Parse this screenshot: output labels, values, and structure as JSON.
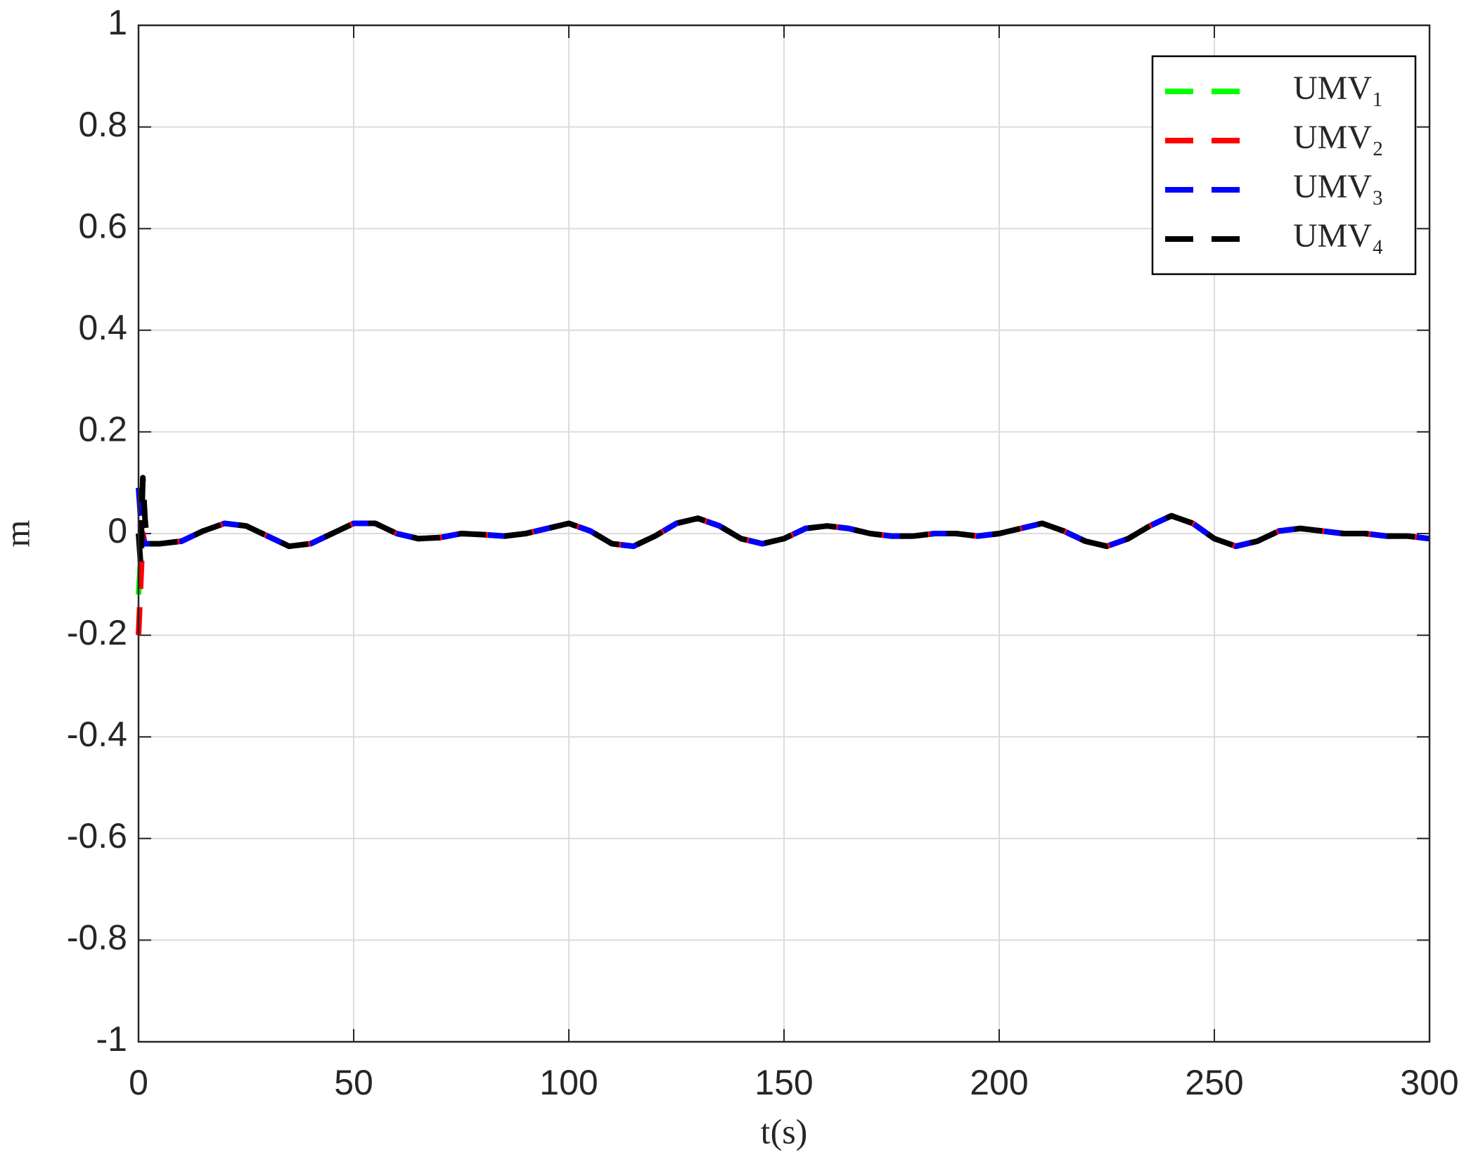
{
  "chart_data": {
    "type": "line",
    "xlabel": "t(s)",
    "ylabel": "m",
    "xlim": [
      0,
      300
    ],
    "ylim": [
      -1,
      1
    ],
    "xticks": [
      0,
      50,
      100,
      150,
      200,
      250,
      300
    ],
    "yticks": [
      -1,
      -0.8,
      -0.6,
      -0.4,
      -0.2,
      0,
      0.2,
      0.4,
      0.6,
      0.8,
      1
    ],
    "grid": true,
    "legend": "upper right",
    "x": [
      0,
      0.5,
      1,
      1.5,
      2,
      3,
      5,
      10,
      15,
      20,
      25,
      30,
      35,
      40,
      45,
      50,
      55,
      60,
      65,
      70,
      75,
      80,
      85,
      90,
      95,
      100,
      105,
      110,
      115,
      120,
      125,
      130,
      135,
      140,
      145,
      150,
      155,
      160,
      165,
      170,
      175,
      180,
      185,
      190,
      195,
      200,
      205,
      210,
      215,
      220,
      225,
      230,
      235,
      240,
      245,
      250,
      255,
      260,
      265,
      270,
      275,
      280,
      285,
      290,
      295,
      300
    ],
    "series": [
      {
        "name": "UMV₁",
        "color": "#00ff00",
        "values": [
          -0.12,
          -0.05,
          0.0,
          -0.02,
          -0.02,
          -0.02,
          -0.02,
          -0.015,
          0.005,
          0.02,
          0.015,
          -0.005,
          -0.025,
          -0.02,
          0.0,
          0.02,
          0.02,
          0.0,
          -0.01,
          -0.008,
          0.0,
          -0.002,
          -0.005,
          0.0,
          0.01,
          0.02,
          0.005,
          -0.02,
          -0.025,
          -0.005,
          0.02,
          0.03,
          0.015,
          -0.01,
          -0.02,
          -0.01,
          0.01,
          0.015,
          0.01,
          0.0,
          -0.005,
          -0.005,
          0.0,
          0.0,
          -0.005,
          0.0,
          0.01,
          0.02,
          0.005,
          -0.015,
          -0.025,
          -0.01,
          0.015,
          0.035,
          0.02,
          -0.01,
          -0.025,
          -0.015,
          0.005,
          0.01,
          0.005,
          0.0,
          0.0,
          -0.005,
          -0.005,
          -0.01
        ]
      },
      {
        "name": "UMV₂",
        "color": "#ff0000",
        "values": [
          -0.2,
          -0.1,
          0.0,
          -0.02,
          -0.02,
          -0.02,
          -0.02,
          -0.015,
          0.005,
          0.02,
          0.015,
          -0.005,
          -0.025,
          -0.02,
          0.0,
          0.02,
          0.02,
          0.0,
          -0.01,
          -0.008,
          0.0,
          -0.002,
          -0.005,
          0.0,
          0.01,
          0.02,
          0.005,
          -0.02,
          -0.025,
          -0.005,
          0.02,
          0.03,
          0.015,
          -0.01,
          -0.02,
          -0.01,
          0.01,
          0.015,
          0.01,
          0.0,
          -0.005,
          -0.005,
          0.0,
          0.0,
          -0.005,
          0.0,
          0.01,
          0.02,
          0.005,
          -0.015,
          -0.025,
          -0.01,
          0.015,
          0.035,
          0.02,
          -0.01,
          -0.025,
          -0.015,
          0.005,
          0.01,
          0.005,
          0.0,
          0.0,
          -0.005,
          -0.005,
          -0.01
        ]
      },
      {
        "name": "UMV₃",
        "color": "#0000ff",
        "values": [
          0.09,
          0.03,
          -0.02,
          -0.02,
          -0.02,
          -0.02,
          -0.02,
          -0.015,
          0.005,
          0.02,
          0.015,
          -0.005,
          -0.025,
          -0.02,
          0.0,
          0.02,
          0.02,
          0.0,
          -0.01,
          -0.008,
          0.0,
          -0.002,
          -0.005,
          0.0,
          0.01,
          0.02,
          0.005,
          -0.02,
          -0.025,
          -0.005,
          0.02,
          0.03,
          0.015,
          -0.01,
          -0.02,
          -0.01,
          0.01,
          0.015,
          0.01,
          0.0,
          -0.005,
          -0.005,
          0.0,
          0.0,
          -0.005,
          0.0,
          0.01,
          0.02,
          0.005,
          -0.015,
          -0.025,
          -0.01,
          0.015,
          0.035,
          0.02,
          -0.01,
          -0.025,
          -0.015,
          0.005,
          0.01,
          0.005,
          0.0,
          0.0,
          -0.005,
          -0.005,
          -0.01
        ]
      },
      {
        "name": "UMV₄",
        "color": "#000000",
        "values": [
          0.0,
          -0.06,
          0.11,
          0.03,
          -0.02,
          -0.02,
          -0.02,
          -0.015,
          0.005,
          0.02,
          0.015,
          -0.005,
          -0.025,
          -0.02,
          0.0,
          0.02,
          0.02,
          0.0,
          -0.01,
          -0.008,
          0.0,
          -0.002,
          -0.005,
          0.0,
          0.01,
          0.02,
          0.005,
          -0.02,
          -0.025,
          -0.005,
          0.02,
          0.03,
          0.015,
          -0.01,
          -0.02,
          -0.01,
          0.01,
          0.015,
          0.01,
          0.0,
          -0.005,
          -0.005,
          0.0,
          0.0,
          -0.005,
          0.0,
          0.01,
          0.02,
          0.005,
          -0.015,
          -0.025,
          -0.01,
          0.015,
          0.035,
          0.02,
          -0.01,
          -0.025,
          -0.015,
          0.005,
          0.01,
          0.005,
          0.0,
          0.0,
          -0.005,
          -0.005,
          -0.01
        ]
      }
    ]
  }
}
